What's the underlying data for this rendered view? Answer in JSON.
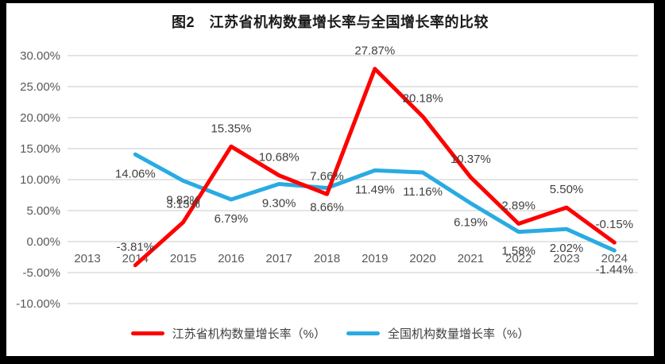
{
  "chart_data": {
    "type": "line",
    "title": "图2　江苏省机构数量增长率与全国增长率的比较",
    "categories": [
      "2013",
      "2014",
      "2015",
      "2016",
      "2017",
      "2018",
      "2019",
      "2020",
      "2021",
      "2022",
      "2023",
      "2024"
    ],
    "series": [
      {
        "name": "江苏省机构数量增长率（%）",
        "color": "#FF0000",
        "label_position": "above",
        "x": [
          "2014",
          "2015",
          "2016",
          "2017",
          "2018",
          "2019",
          "2020",
          "2021",
          "2022",
          "2023",
          "2024"
        ],
        "values": [
          -3.81,
          3.13,
          15.35,
          10.68,
          7.66,
          27.87,
          20.18,
          10.37,
          2.89,
          5.5,
          -0.15
        ],
        "data_labels": [
          "-3.81%",
          "3.13%",
          "15.35%",
          "10.68%",
          "7.66%",
          "27.87%",
          "20.18%",
          "10.37%",
          "2.89%",
          "5.50%",
          "-0.15%"
        ]
      },
      {
        "name": "全国机构数量增长率（%）",
        "color": "#29ABE2",
        "label_position": "below",
        "x": [
          "2014",
          "2015",
          "2016",
          "2017",
          "2018",
          "2019",
          "2020",
          "2021",
          "2022",
          "2023",
          "2024"
        ],
        "values": [
          14.06,
          9.82,
          6.79,
          9.3,
          8.66,
          11.49,
          11.16,
          6.19,
          1.58,
          2.02,
          -1.44
        ],
        "data_labels": [
          "14.06%",
          "9.82%",
          "6.79%",
          "9.30%",
          "8.66%",
          "11.49%",
          "11.16%",
          "6.19%",
          "1.58%",
          "2.02%",
          "-1.44%"
        ]
      }
    ],
    "y_axis": {
      "tick_labels": [
        "30.00%",
        "25.00%",
        "20.00%",
        "15.00%",
        "10.00%",
        "5.00%",
        "0.00%",
        "-5.00%",
        "-10.00%"
      ],
      "tick_values": [
        30,
        25,
        20,
        15,
        10,
        5,
        0,
        -5,
        -10
      ],
      "min": -10,
      "max": 30
    },
    "grid": true,
    "grid_color": "#DCDCDC",
    "legend_position": "bottom",
    "colors": {
      "jiangsu_line": "#FF0000",
      "national_line": "#29ABE2",
      "axis_text": "#595959",
      "data_label_text": "#404040",
      "title_text": "#1a1a1a",
      "frame": "#000000",
      "background": "#ffffff"
    }
  }
}
